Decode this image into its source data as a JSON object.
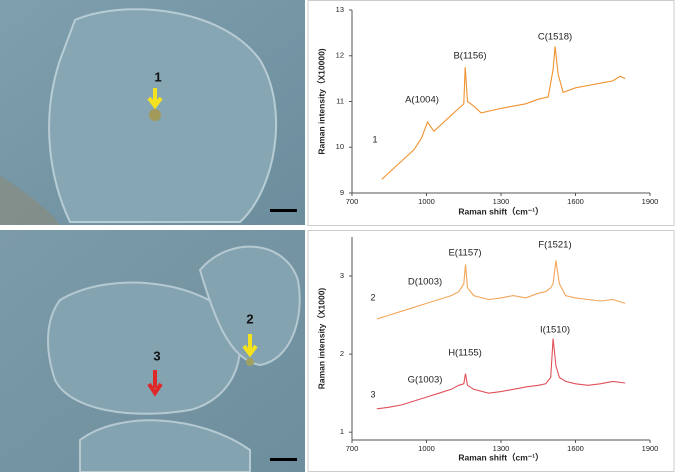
{
  "chart_data": [
    {
      "type": "line",
      "x": [
        820,
        850,
        900,
        950,
        980,
        1004,
        1030,
        1060,
        1100,
        1130,
        1150,
        1156,
        1165,
        1190,
        1220,
        1260,
        1300,
        1350,
        1400,
        1450,
        1490,
        1510,
        1518,
        1530,
        1550,
        1600,
        1650,
        1700,
        1750,
        1780,
        1800
      ],
      "series": [
        {
          "name": "1",
          "color": "#f0922f",
          "values": [
            9.3,
            9.45,
            9.7,
            9.95,
            10.2,
            10.55,
            10.35,
            10.5,
            10.7,
            10.85,
            10.95,
            11.75,
            11.0,
            10.9,
            10.75,
            10.8,
            10.85,
            10.9,
            10.95,
            11.05,
            11.1,
            11.7,
            12.2,
            11.6,
            11.2,
            11.3,
            11.35,
            11.4,
            11.45,
            11.55,
            11.5
          ]
        }
      ],
      "xlim": [
        700,
        1900
      ],
      "xticks": [
        700,
        1000,
        1300,
        1600,
        1900
      ],
      "ylim": [
        9,
        13
      ],
      "yticks": [
        9,
        10,
        11,
        12,
        13
      ],
      "xlabel": "Raman shift（cm⁻¹）",
      "ylabel": "Raman intensity（X10000)",
      "annotations": [
        "A(1004)",
        "B(1156)",
        "C(1518)"
      ]
    },
    {
      "type": "line",
      "x": [
        800,
        850,
        900,
        950,
        1000,
        1050,
        1100,
        1130,
        1150,
        1157,
        1165,
        1190,
        1250,
        1300,
        1350,
        1400,
        1450,
        1480,
        1500,
        1510,
        1521,
        1535,
        1560,
        1600,
        1650,
        1700,
        1750,
        1800
      ],
      "series": [
        {
          "name": "2",
          "color": "#f2a65a",
          "values": [
            2.45,
            2.5,
            2.55,
            2.6,
            2.65,
            2.7,
            2.75,
            2.8,
            2.9,
            3.15,
            2.85,
            2.75,
            2.7,
            2.72,
            2.75,
            2.72,
            2.78,
            2.8,
            2.85,
            2.9,
            3.2,
            2.9,
            2.75,
            2.72,
            2.7,
            2.68,
            2.7,
            2.65
          ]
        },
        {
          "name": "3",
          "color": "#e0505a",
          "values": [
            1.3,
            1.32,
            1.35,
            1.4,
            1.45,
            1.5,
            1.55,
            1.6,
            1.62,
            1.75,
            1.6,
            1.55,
            1.5,
            1.52,
            1.55,
            1.58,
            1.6,
            1.62,
            1.7,
            2.2,
            1.85,
            1.7,
            1.65,
            1.62,
            1.6,
            1.62,
            1.65,
            1.63
          ]
        }
      ],
      "xlim": [
        700,
        1900
      ],
      "xticks": [
        700,
        1000,
        1300,
        1600,
        1900
      ],
      "ylim": [
        0.9,
        3.5
      ],
      "yticks": [
        1,
        2,
        3
      ],
      "xlabel": "Raman shift（cm⁻¹）",
      "ylabel": "Raman intensity（X1000)",
      "annotations": [
        "D(1003)",
        "E(1157)",
        "F(1521)",
        "G(1003)",
        "H(1155)",
        "I(1510)"
      ]
    }
  ],
  "images": [
    {
      "labels": [
        "1"
      ]
    },
    {
      "labels": [
        "2",
        "3"
      ]
    }
  ]
}
